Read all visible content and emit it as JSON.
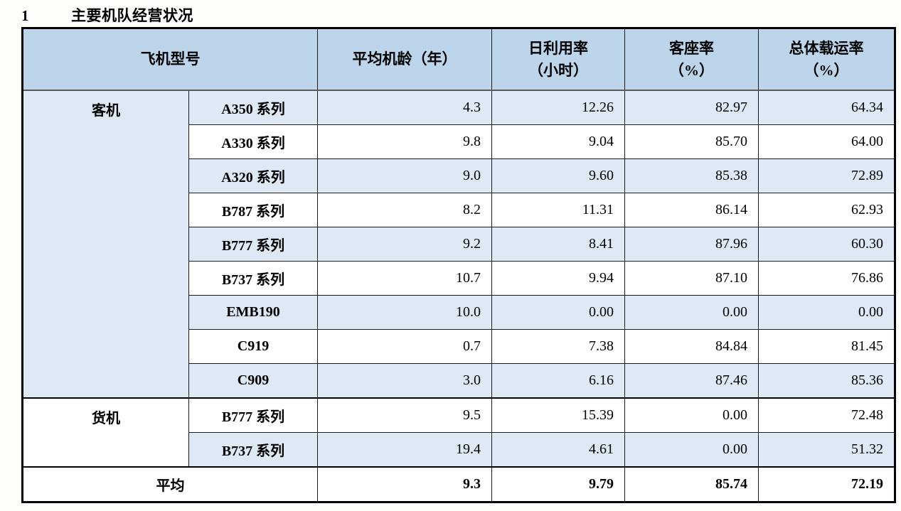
{
  "title": {
    "number": "1",
    "text": "主要机队经营状况"
  },
  "table": {
    "headers": {
      "model": "飞机型号",
      "avg_age": "平均机龄（年）",
      "daily_util_line1": "日利用率",
      "daily_util_line2": "（小时）",
      "load_factor_line1": "客座率",
      "load_factor_line2": "（%）",
      "overall_load_line1": "总体载运率",
      "overall_load_line2": "（%）"
    },
    "groups": [
      {
        "name": "客机",
        "rows": [
          {
            "model": "A350 系列",
            "avg_age": "4.3",
            "daily_util": "12.26",
            "load_factor": "82.97",
            "overall_load": "64.34"
          },
          {
            "model": "A330 系列",
            "avg_age": "9.8",
            "daily_util": "9.04",
            "load_factor": "85.70",
            "overall_load": "64.00"
          },
          {
            "model": "A320 系列",
            "avg_age": "9.0",
            "daily_util": "9.60",
            "load_factor": "85.38",
            "overall_load": "72.89"
          },
          {
            "model": "B787 系列",
            "avg_age": "8.2",
            "daily_util": "11.31",
            "load_factor": "86.14",
            "overall_load": "62.93"
          },
          {
            "model": "B777 系列",
            "avg_age": "9.2",
            "daily_util": "8.41",
            "load_factor": "87.96",
            "overall_load": "60.30"
          },
          {
            "model": "B737 系列",
            "avg_age": "10.7",
            "daily_util": "9.94",
            "load_factor": "87.10",
            "overall_load": "76.86"
          },
          {
            "model": "EMB190",
            "avg_age": "10.0",
            "daily_util": "0.00",
            "load_factor": "0.00",
            "overall_load": "0.00"
          },
          {
            "model": "C919",
            "avg_age": "0.7",
            "daily_util": "7.38",
            "load_factor": "84.84",
            "overall_load": "81.45"
          },
          {
            "model": "C909",
            "avg_age": "3.0",
            "daily_util": "6.16",
            "load_factor": "87.46",
            "overall_load": "85.36"
          }
        ]
      },
      {
        "name": "货机",
        "rows": [
          {
            "model": "B777 系列",
            "avg_age": "9.5",
            "daily_util": "15.39",
            "load_factor": "0.00",
            "overall_load": "72.48"
          },
          {
            "model": "B737 系列",
            "avg_age": "19.4",
            "daily_util": "4.61",
            "load_factor": "0.00",
            "overall_load": "51.32"
          }
        ]
      }
    ],
    "footer": {
      "label": "平均",
      "avg_age": "9.3",
      "daily_util": "9.79",
      "load_factor": "85.74",
      "overall_load": "72.19"
    }
  },
  "colors": {
    "header_bg": "#bcd5eb",
    "shaded_row_bg": "#dee9f5",
    "plain_row_bg": "#ffffff",
    "border": "#000000"
  }
}
